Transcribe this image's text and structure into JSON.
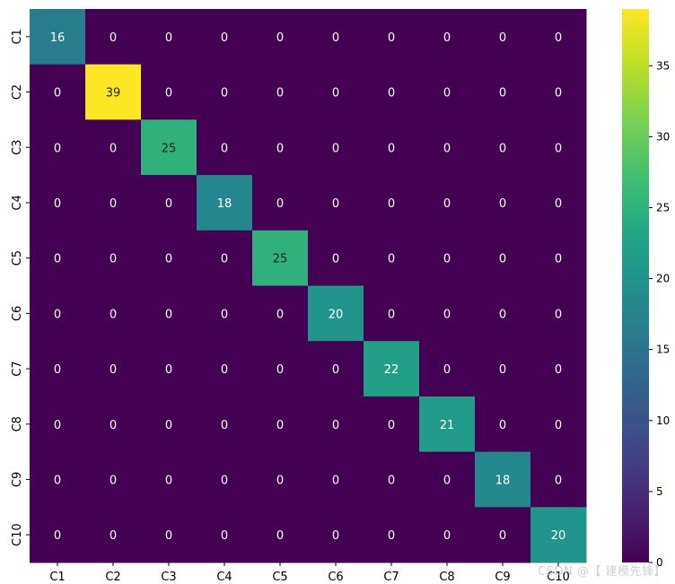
{
  "chart_data": {
    "type": "heatmap",
    "title": "",
    "xlabel": "",
    "ylabel": "",
    "x_categories": [
      "C1",
      "C2",
      "C3",
      "C4",
      "C5",
      "C6",
      "C7",
      "C8",
      "C9",
      "C10"
    ],
    "y_categories": [
      "C1",
      "C2",
      "C3",
      "C4",
      "C5",
      "C6",
      "C7",
      "C8",
      "C9",
      "C10"
    ],
    "values": [
      [
        16,
        0,
        0,
        0,
        0,
        0,
        0,
        0,
        0,
        0
      ],
      [
        0,
        39,
        0,
        0,
        0,
        0,
        0,
        0,
        0,
        0
      ],
      [
        0,
        0,
        25,
        0,
        0,
        0,
        0,
        0,
        0,
        0
      ],
      [
        0,
        0,
        0,
        18,
        0,
        0,
        0,
        0,
        0,
        0
      ],
      [
        0,
        0,
        0,
        0,
        25,
        0,
        0,
        0,
        0,
        0
      ],
      [
        0,
        0,
        0,
        0,
        0,
        20,
        0,
        0,
        0,
        0
      ],
      [
        0,
        0,
        0,
        0,
        0,
        0,
        22,
        0,
        0,
        0
      ],
      [
        0,
        0,
        0,
        0,
        0,
        0,
        0,
        21,
        0,
        0
      ],
      [
        0,
        0,
        0,
        0,
        0,
        0,
        0,
        0,
        18,
        0
      ],
      [
        0,
        0,
        0,
        0,
        0,
        0,
        0,
        0,
        0,
        20
      ]
    ],
    "colormap": "viridis",
    "colorbar": {
      "range": [
        0,
        39
      ],
      "ticks": [
        0,
        5,
        10,
        15,
        20,
        25,
        30,
        35
      ]
    },
    "annotations": true,
    "grid": false
  },
  "watermark": "CSDN @【 建模先锋】"
}
